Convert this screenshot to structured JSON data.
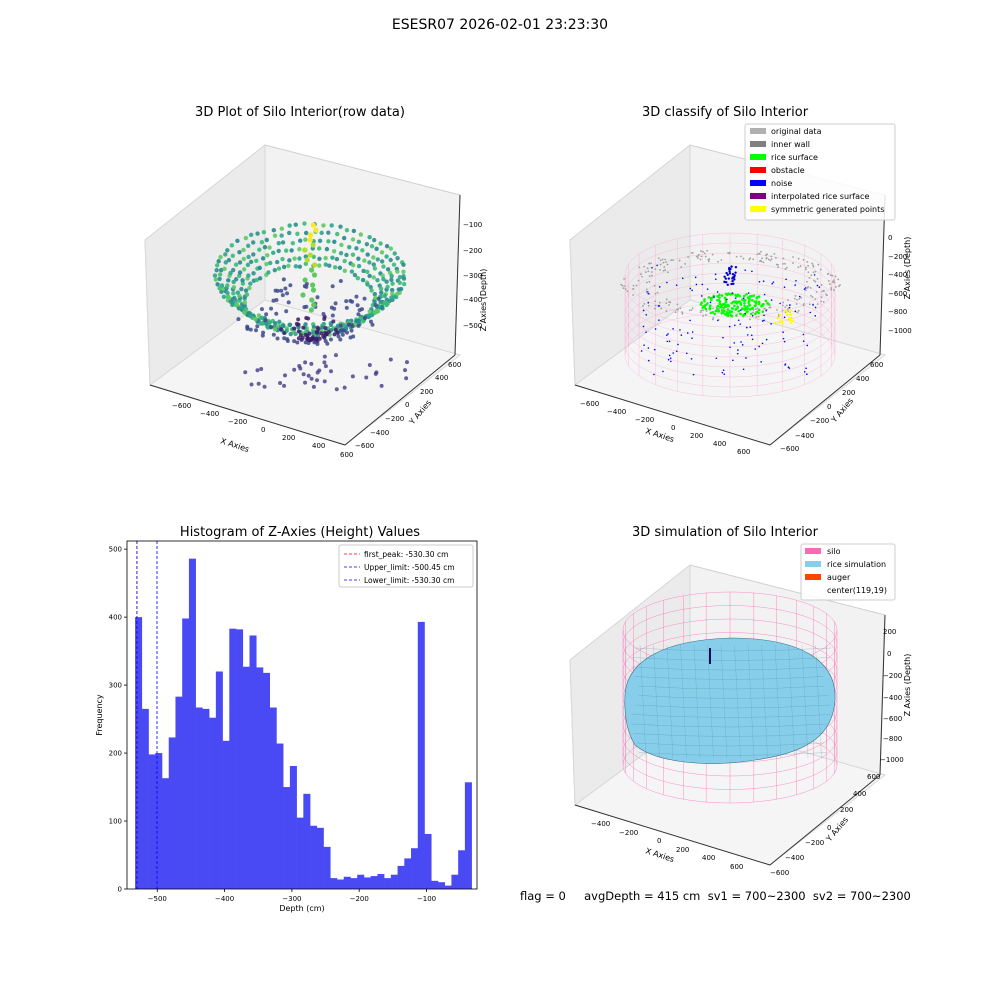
{
  "figure": {
    "suptitle": "ESESR07 2026-02-01 23:23:30",
    "footer": "flag = 0     avgDepth = 415 cm  sv1 = 700~2300  sv2 = 700~2300"
  },
  "panels": {
    "raw": {
      "title": "3D Plot of Silo Interior(row data)",
      "xlabel": "X Axies",
      "ylabel": "Y Axies",
      "zlabel": "Z Axies (Depth)",
      "xticks": [
        "−600",
        "−400",
        "−200",
        "0",
        "200",
        "400",
        "600"
      ],
      "yticks": [
        "−600",
        "−400",
        "−200",
        "0",
        "200",
        "400",
        "600"
      ],
      "zticks": [
        "−100",
        "−200",
        "−300",
        "−400",
        "−500"
      ]
    },
    "classify": {
      "title": "3D classify of Silo Interior",
      "xlabel": "X Axies",
      "ylabel": "Y Axies",
      "zlabel": "Z Axies (Depth)",
      "xticks": [
        "−600",
        "−400",
        "−200",
        "0",
        "200",
        "400",
        "600"
      ],
      "yticks": [
        "−600",
        "−400",
        "−200",
        "0",
        "200",
        "400",
        "600"
      ],
      "zticks": [
        "0",
        "−200",
        "−400",
        "−600",
        "−800",
        "−1000"
      ],
      "legend": [
        {
          "label": "original data",
          "color": "#b0b0b0"
        },
        {
          "label": "inner wall",
          "color": "#808080"
        },
        {
          "label": "rice surface",
          "color": "#00ff00"
        },
        {
          "label": "obstacle",
          "color": "#ff0000"
        },
        {
          "label": "noise",
          "color": "#0000ff"
        },
        {
          "label": "interpolated rice surface",
          "color": "#800080"
        },
        {
          "label": "symmetric generated points",
          "color": "#ffff00"
        }
      ]
    },
    "simulation": {
      "title": "3D simulation of Silo Interior",
      "xlabel": "X Axies",
      "ylabel": "Y Axies",
      "zlabel": "Z Axies (Depth)",
      "xticks": [
        "−400",
        "−200",
        "0",
        "200",
        "400",
        "600"
      ],
      "yticks": [
        "−600",
        "−400",
        "−200",
        "0",
        "200",
        "400",
        "600"
      ],
      "zticks": [
        "200",
        "0",
        "−200",
        "−400",
        "−600",
        "−800",
        "−1000"
      ],
      "legend": [
        {
          "label": "silo",
          "color": "#ff69b4"
        },
        {
          "label": "rice simulation",
          "color": "#87ceeb"
        },
        {
          "label": "auger",
          "color": "#ff4500"
        },
        {
          "label": "center(119,19)",
          "color": ""
        }
      ]
    }
  },
  "chart_data": [
    {
      "type": "histogram",
      "title": "Histogram of Z-Axies (Height) Values",
      "xlabel": "Depth (cm)",
      "ylabel": "Frequency",
      "xlim": [
        -545,
        -25
      ],
      "ylim": [
        0,
        512
      ],
      "xticks": [
        -500,
        -400,
        -300,
        -200,
        -100
      ],
      "yticks": [
        0,
        100,
        200,
        300,
        400,
        500
      ],
      "bar_color": "#4a4af5",
      "bin_start": -533,
      "bin_width": 10,
      "counts": [
        400,
        265,
        198,
        200,
        163,
        223,
        283,
        398,
        486,
        267,
        265,
        252,
        320,
        218,
        383,
        382,
        327,
        373,
        326,
        318,
        267,
        214,
        150,
        181,
        105,
        140,
        93,
        90,
        62,
        16,
        14,
        18,
        16,
        21,
        17,
        19,
        22,
        16,
        21,
        34,
        45,
        60,
        393,
        81,
        12,
        10,
        5,
        21,
        57,
        157
      ],
      "vlines": [
        {
          "label": "first_peak: -530.30 cm",
          "x": -530.3,
          "color": "#ff0000"
        },
        {
          "label": "Upper_limit: -500.45 cm",
          "x": -500.45,
          "color": "#0000ff"
        },
        {
          "label": "Lower_limit: -530.30 cm",
          "x": -530.3,
          "color": "#0000ff"
        }
      ],
      "legend_position": "top-right"
    }
  ]
}
